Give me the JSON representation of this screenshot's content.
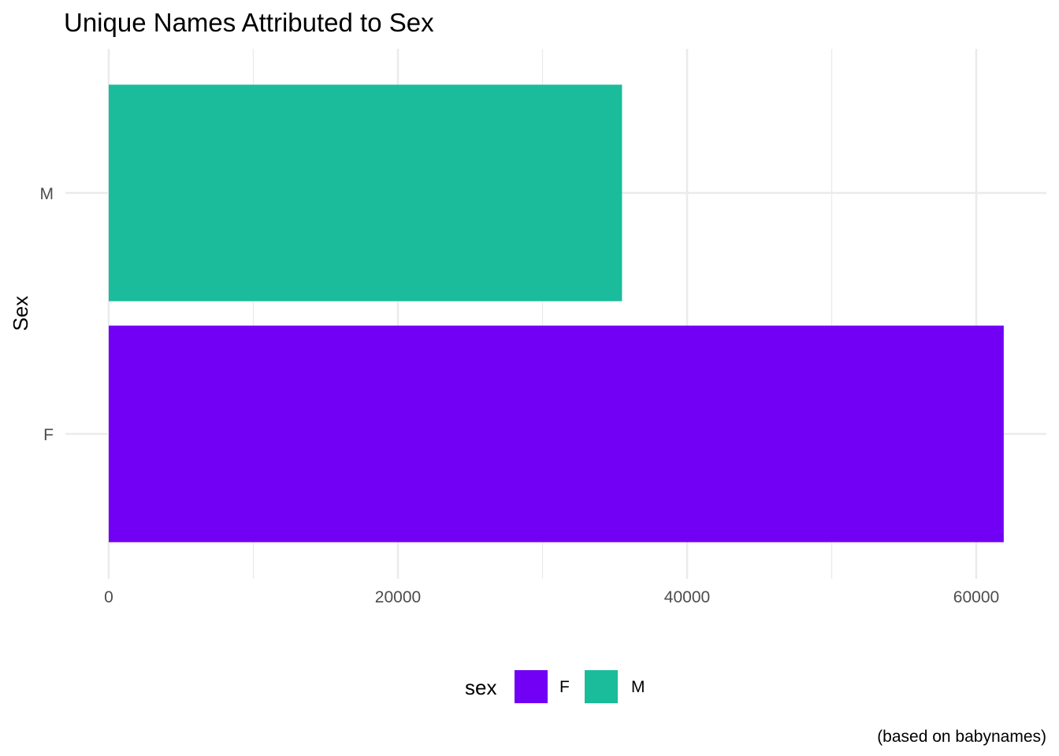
{
  "chart_data": {
    "type": "bar",
    "orientation": "horizontal",
    "title": "Unique Names Attributed to Sex",
    "xlabel": "",
    "ylabel": "Sex",
    "caption": "(based on babynames)",
    "categories": [
      "F",
      "M"
    ],
    "values": [
      61900,
      35500
    ],
    "colors": {
      "F": "#7100F5",
      "M": "#1ABC9C"
    },
    "xlim": [
      0,
      65000
    ],
    "xticks": [
      0,
      20000,
      40000,
      60000
    ],
    "xtick_labels": [
      "0",
      "20000",
      "40000",
      "60000"
    ],
    "grid": true,
    "legend": {
      "title": "sex",
      "position": "bottom",
      "entries": [
        {
          "label": "F",
          "color": "#7100F5"
        },
        {
          "label": "M",
          "color": "#1ABC9C"
        }
      ]
    }
  }
}
